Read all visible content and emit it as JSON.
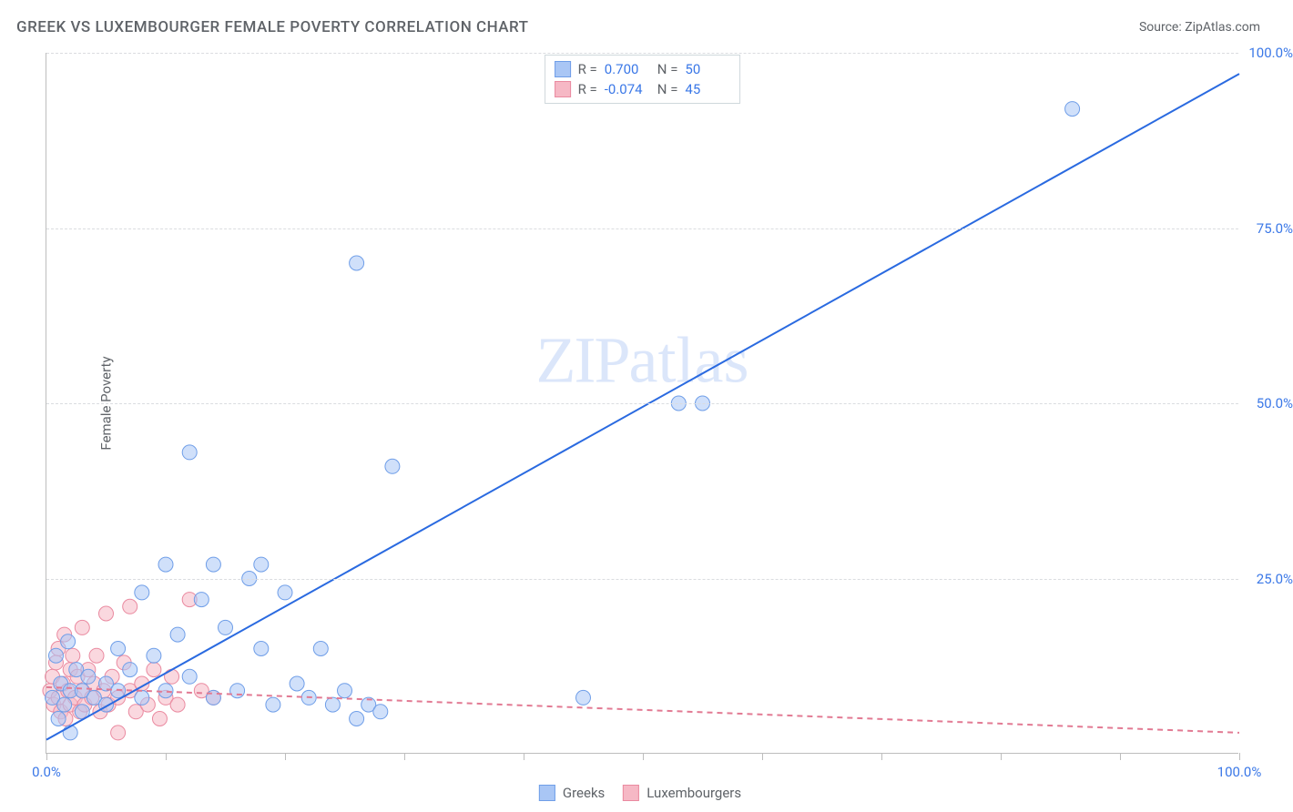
{
  "title": "GREEK VS LUXEMBOURGER FEMALE POVERTY CORRELATION CHART",
  "source": "Source: ZipAtlas.com",
  "ylabel": "Female Poverty",
  "watermark": "ZIPatlas",
  "chart": {
    "type": "scatter",
    "xlim": [
      0,
      100
    ],
    "ylim": [
      0,
      100
    ],
    "yticks": [
      25.0,
      50.0,
      75.0,
      100.0
    ],
    "ytick_labels": [
      "25.0%",
      "50.0%",
      "75.0%",
      "100.0%"
    ],
    "xtick_positions": [
      0,
      10,
      20,
      30,
      40,
      50,
      60,
      70,
      80,
      90,
      100
    ],
    "xtick_labels": {
      "0": "0.0%",
      "100": "100.0%"
    },
    "grid_color": "#dadce0",
    "axis_color": "#bdbdbd",
    "background_color": "#ffffff",
    "marker_radius": 8,
    "marker_opacity": 0.55,
    "line_width": 2,
    "series": [
      {
        "name": "Greeks",
        "color_fill": "#a9c6f5",
        "color_stroke": "#6f9ee8",
        "line_color": "#2a6ae0",
        "line_dash": "none",
        "R": "0.700",
        "N": "50",
        "trend": {
          "x1": 0,
          "y1": 2,
          "x2": 100,
          "y2": 97
        },
        "points": [
          [
            0.5,
            8
          ],
          [
            0.8,
            14
          ],
          [
            1,
            5
          ],
          [
            1.2,
            10
          ],
          [
            1.5,
            7
          ],
          [
            1.8,
            16
          ],
          [
            2,
            3
          ],
          [
            2,
            9
          ],
          [
            2.5,
            12
          ],
          [
            3,
            6
          ],
          [
            3,
            9
          ],
          [
            3.5,
            11
          ],
          [
            4,
            8
          ],
          [
            5,
            10
          ],
          [
            5,
            7
          ],
          [
            6,
            15
          ],
          [
            6,
            9
          ],
          [
            7,
            12
          ],
          [
            8,
            8
          ],
          [
            8,
            23
          ],
          [
            9,
            14
          ],
          [
            10,
            27
          ],
          [
            10,
            9
          ],
          [
            11,
            17
          ],
          [
            12,
            11
          ],
          [
            12,
            43
          ],
          [
            13,
            22
          ],
          [
            14,
            27
          ],
          [
            14,
            8
          ],
          [
            15,
            18
          ],
          [
            16,
            9
          ],
          [
            17,
            25
          ],
          [
            18,
            27
          ],
          [
            18,
            15
          ],
          [
            19,
            7
          ],
          [
            20,
            23
          ],
          [
            21,
            10
          ],
          [
            22,
            8
          ],
          [
            23,
            15
          ],
          [
            24,
            7
          ],
          [
            25,
            9
          ],
          [
            26,
            5
          ],
          [
            26,
            70
          ],
          [
            27,
            7
          ],
          [
            28,
            6
          ],
          [
            29,
            41
          ],
          [
            45,
            8
          ],
          [
            53,
            50
          ],
          [
            55,
            50
          ],
          [
            86,
            92
          ]
        ]
      },
      {
        "name": "Luxembourgers",
        "color_fill": "#f6b8c5",
        "color_stroke": "#ea8aa0",
        "line_color": "#e27a93",
        "line_dash": "6,5",
        "R": "-0.074",
        "N": "45",
        "trend": {
          "x1": 0,
          "y1": 9.5,
          "x2": 100,
          "y2": 3
        },
        "points": [
          [
            0.3,
            9
          ],
          [
            0.5,
            11
          ],
          [
            0.6,
            7
          ],
          [
            0.8,
            13
          ],
          [
            1,
            8
          ],
          [
            1,
            15
          ],
          [
            1.2,
            6
          ],
          [
            1.4,
            10
          ],
          [
            1.5,
            17
          ],
          [
            1.6,
            5
          ],
          [
            1.8,
            9
          ],
          [
            2,
            12
          ],
          [
            2,
            7
          ],
          [
            2.2,
            14
          ],
          [
            2.4,
            8
          ],
          [
            2.6,
            11
          ],
          [
            2.8,
            6
          ],
          [
            3,
            18
          ],
          [
            3,
            9
          ],
          [
            3.2,
            7
          ],
          [
            3.5,
            12
          ],
          [
            3.8,
            8
          ],
          [
            4,
            10
          ],
          [
            4.2,
            14
          ],
          [
            4.5,
            6
          ],
          [
            4.8,
            9
          ],
          [
            5,
            20
          ],
          [
            5.2,
            7
          ],
          [
            5.5,
            11
          ],
          [
            6,
            8
          ],
          [
            6,
            3
          ],
          [
            6.5,
            13
          ],
          [
            7,
            21
          ],
          [
            7,
            9
          ],
          [
            7.5,
            6
          ],
          [
            8,
            10
          ],
          [
            8.5,
            7
          ],
          [
            9,
            12
          ],
          [
            9.5,
            5
          ],
          [
            10,
            8
          ],
          [
            10.5,
            11
          ],
          [
            11,
            7
          ],
          [
            12,
            22
          ],
          [
            13,
            9
          ],
          [
            14,
            8
          ]
        ]
      }
    ]
  },
  "legend": {
    "r_label": "R =",
    "n_label": "N ="
  },
  "tick_label_color": "#3b78e7",
  "text_color": "#5f6368"
}
